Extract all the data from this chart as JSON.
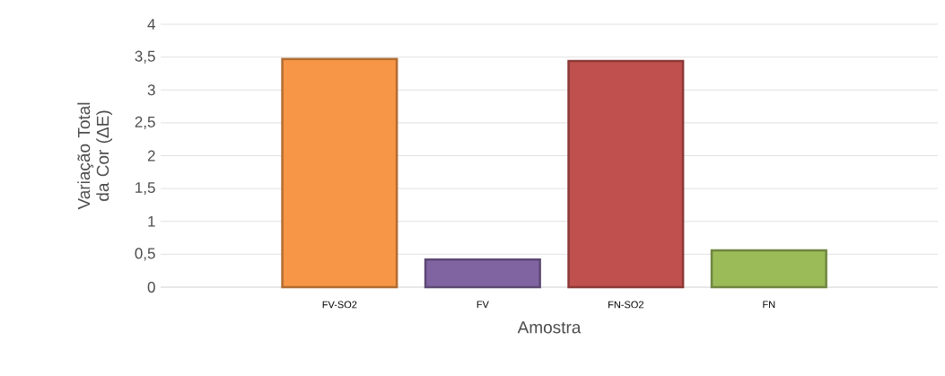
{
  "chart_data": {
    "type": "bar",
    "xlabel": "Amostra",
    "ylabel": "Variação Total da Cor (ΔE)",
    "categories": [
      null,
      "FV-SO2",
      "FV",
      "FN-SO2",
      "FN",
      null
    ],
    "values": [
      null,
      3.47,
      0.42,
      3.44,
      0.56,
      null
    ],
    "colors": [
      "#f79646",
      "#f79646",
      "#8064a2",
      "#c0504d",
      "#9bbb59",
      "#9bbb59"
    ],
    "ylim": [
      0,
      4
    ],
    "yticks": [
      0,
      {
        "value": 0.5,
        "label": "0,5"
      },
      1,
      {
        "value": 1.5,
        "label": "1,5"
      },
      2,
      {
        "value": 2.5,
        "label": "2,5"
      },
      3,
      {
        "value": 3.5,
        "label": "3,5"
      },
      4
    ],
    "grid": "y"
  }
}
